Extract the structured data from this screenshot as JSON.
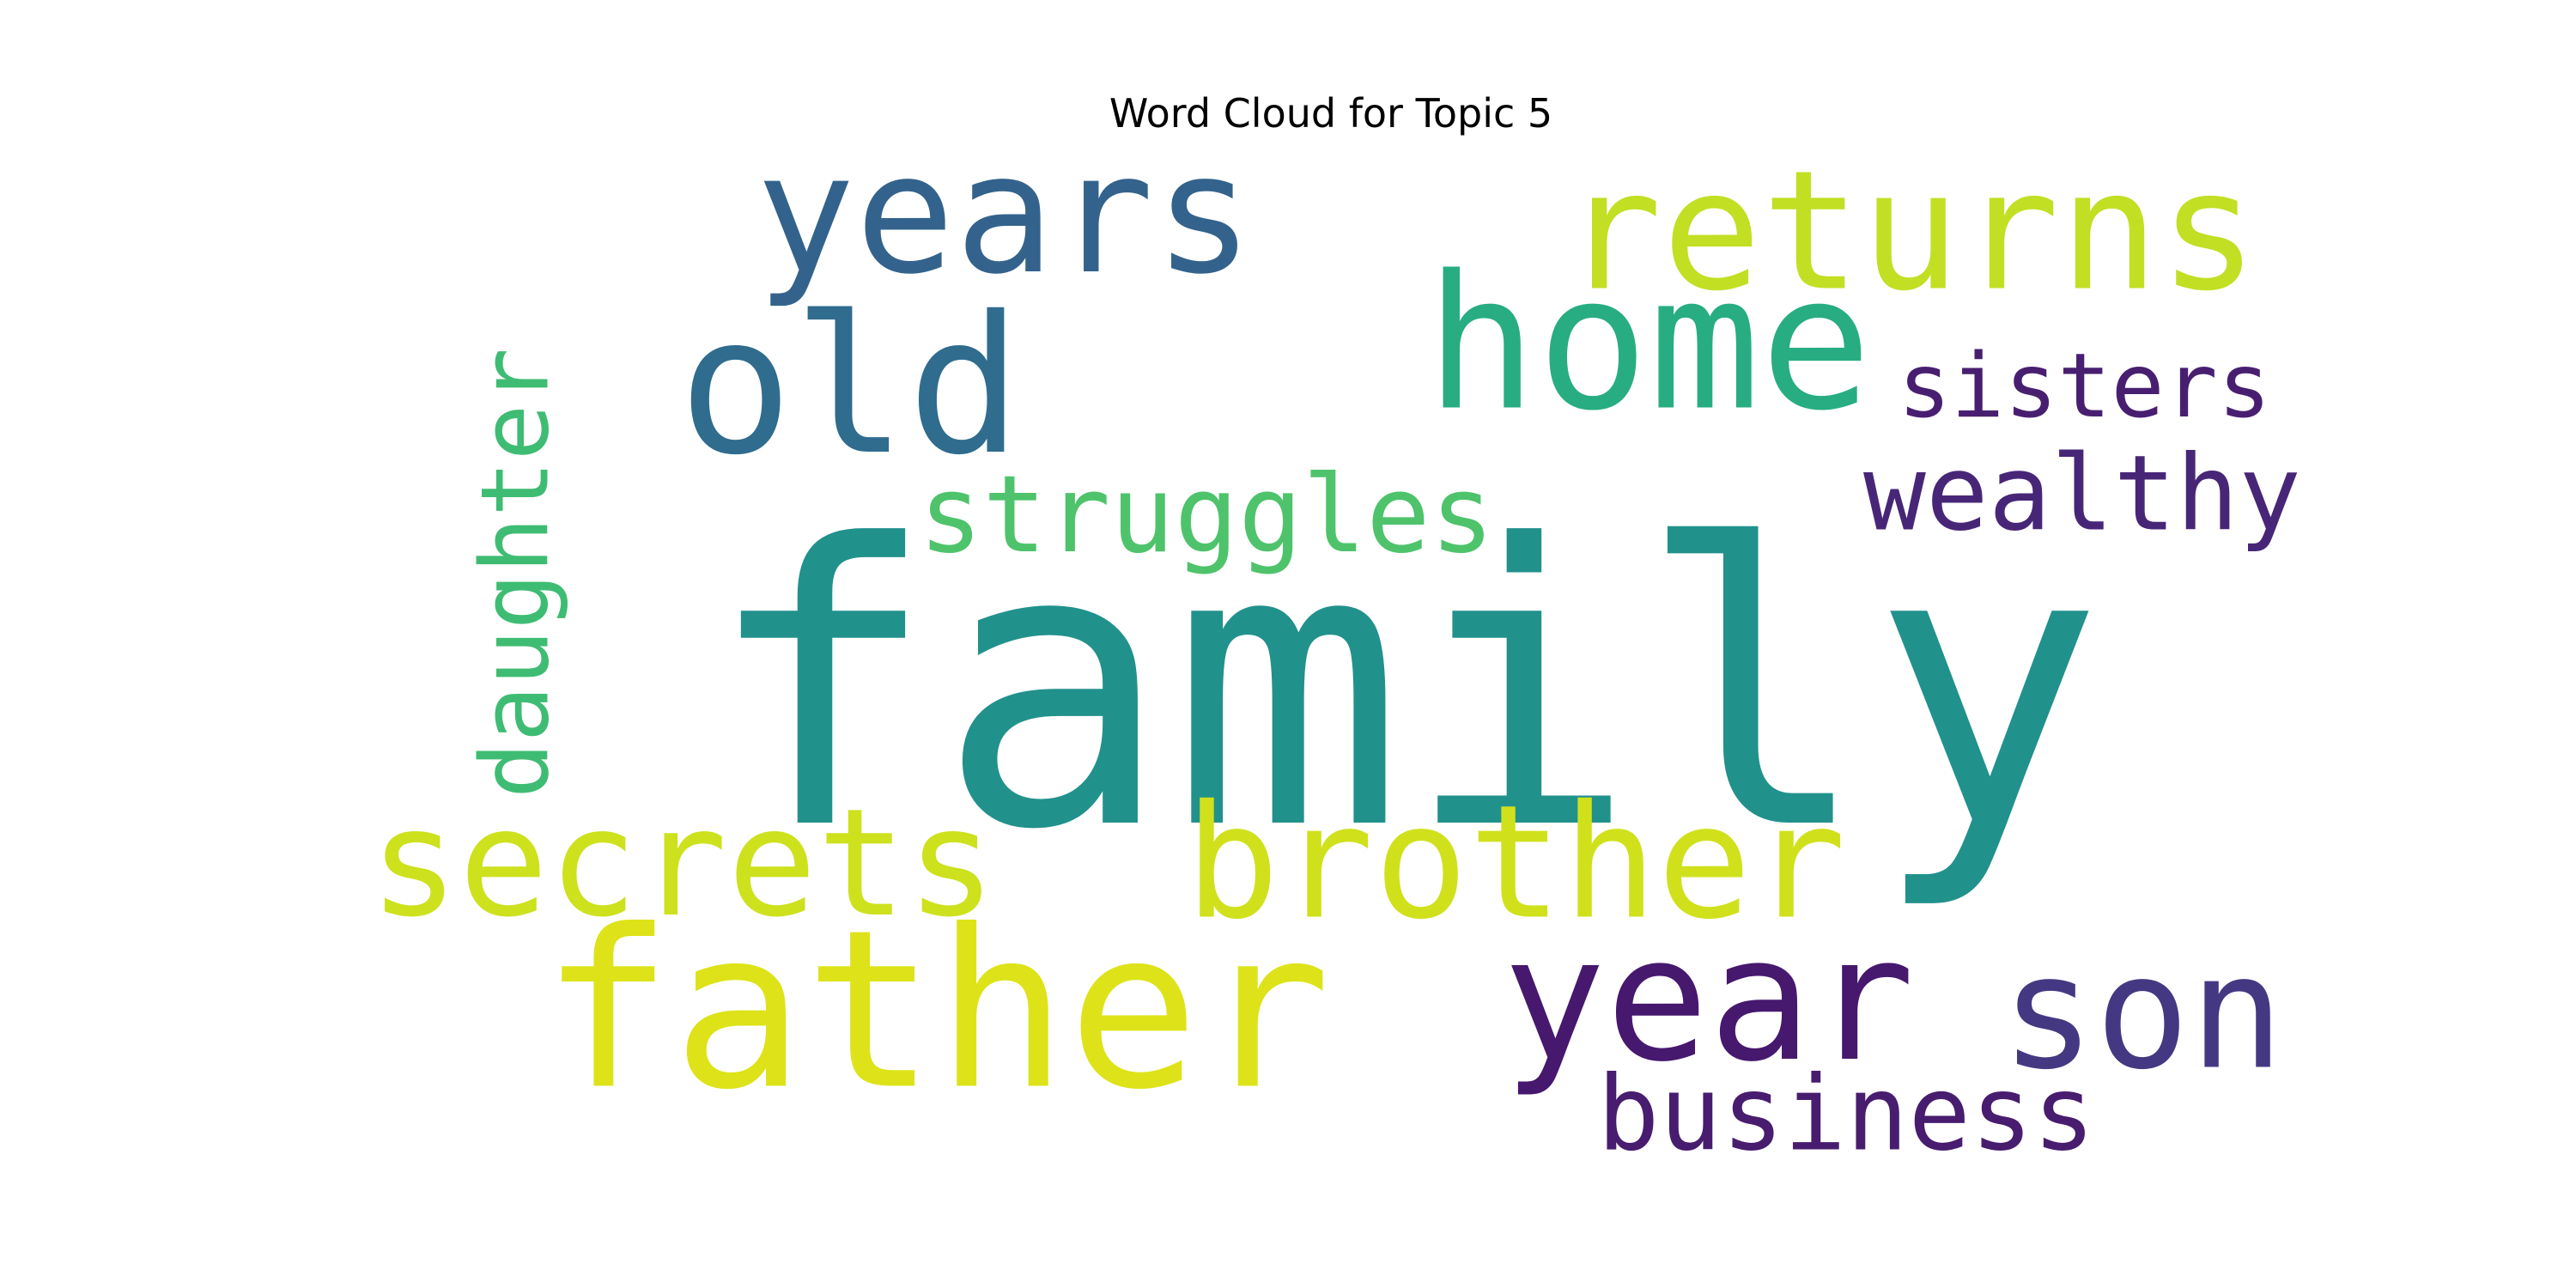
{
  "chart_data": {
    "type": "wordcloud",
    "title": "Word Cloud for Topic 5",
    "colormap": "viridis",
    "background": "#ffffff",
    "words": [
      {
        "text": "family",
        "weight": 1.0,
        "color": "#21918c",
        "orientation": "horizontal"
      },
      {
        "text": "father",
        "weight": 0.55,
        "color": "#dde318",
        "orientation": "horizontal"
      },
      {
        "text": "years",
        "weight": 0.45,
        "color": "#33638d",
        "orientation": "horizontal"
      },
      {
        "text": "old",
        "weight": 0.45,
        "color": "#2f6c8e",
        "orientation": "horizontal"
      },
      {
        "text": "home",
        "weight": 0.46,
        "color": "#27ad81",
        "orientation": "horizontal"
      },
      {
        "text": "returns",
        "weight": 0.45,
        "color": "#c2df23",
        "orientation": "horizontal"
      },
      {
        "text": "year",
        "weight": 0.46,
        "color": "#46186e",
        "orientation": "horizontal"
      },
      {
        "text": "son",
        "weight": 0.43,
        "color": "#453882",
        "orientation": "horizontal"
      },
      {
        "text": "brother",
        "weight": 0.43,
        "color": "#d0e11c",
        "orientation": "horizontal"
      },
      {
        "text": "secrets",
        "weight": 0.4,
        "color": "#cde11d",
        "orientation": "horizontal"
      },
      {
        "text": "daughter",
        "weight": 0.31,
        "color": "#3fbc73",
        "orientation": "vertical"
      },
      {
        "text": "struggles",
        "weight": 0.27,
        "color": "#4ec36b",
        "orientation": "horizontal"
      },
      {
        "text": "wealthy",
        "weight": 0.27,
        "color": "#482677",
        "orientation": "horizontal"
      },
      {
        "text": "sisters",
        "weight": 0.24,
        "color": "#481f70",
        "orientation": "horizontal"
      },
      {
        "text": "business",
        "weight": 0.27,
        "color": "#481c6e",
        "orientation": "horizontal"
      }
    ]
  }
}
